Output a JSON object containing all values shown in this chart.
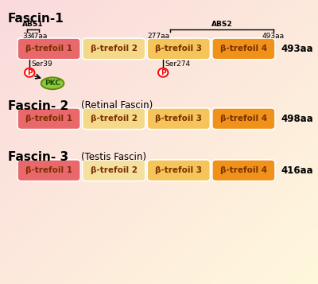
{
  "fascin1_title": "Fascin-1",
  "fascin2_title": "Fascin- 2",
  "fascin2_subtitle": "(Retinal Fascin)",
  "fascin3_title": "Fascin- 3",
  "fascin3_subtitle": "(Testis Fascin)",
  "fascin1_aa": "493aa",
  "fascin2_aa": "498aa",
  "fascin3_aa": "416aa",
  "domain_labels": [
    "β-trefoil 1",
    "β-trefoil 2",
    "β-trefoil 3",
    "β-trefoil 4"
  ],
  "domain_colors_f1": [
    "#E8686B",
    "#F5D98B",
    "#F5C45A",
    "#F0921A"
  ],
  "domain_colors_f2": [
    "#E8686B",
    "#F5D98B",
    "#F5C45A",
    "#F0921A"
  ],
  "domain_colors_f3": [
    "#E8686B",
    "#F5E0A0",
    "#F5C45A",
    "#F0921A"
  ],
  "abs1_label": "ABS1",
  "abs2_label": "ABS2",
  "ann_33": "33",
  "ann_47": "47aa",
  "ann_277": "277aa",
  "ann_493": "493aa",
  "ser39_label": "Ser39",
  "ser274_label": "Ser274",
  "pkc_label": "PKC",
  "p_label": "P",
  "bg_top_left": "#FADADD",
  "bg_bottom_right": "#FFF8DC",
  "domain_text_color": "#7A3000",
  "title_fontsize": 11,
  "domain_fontsize": 7.5,
  "ann_fontsize": 6.5
}
